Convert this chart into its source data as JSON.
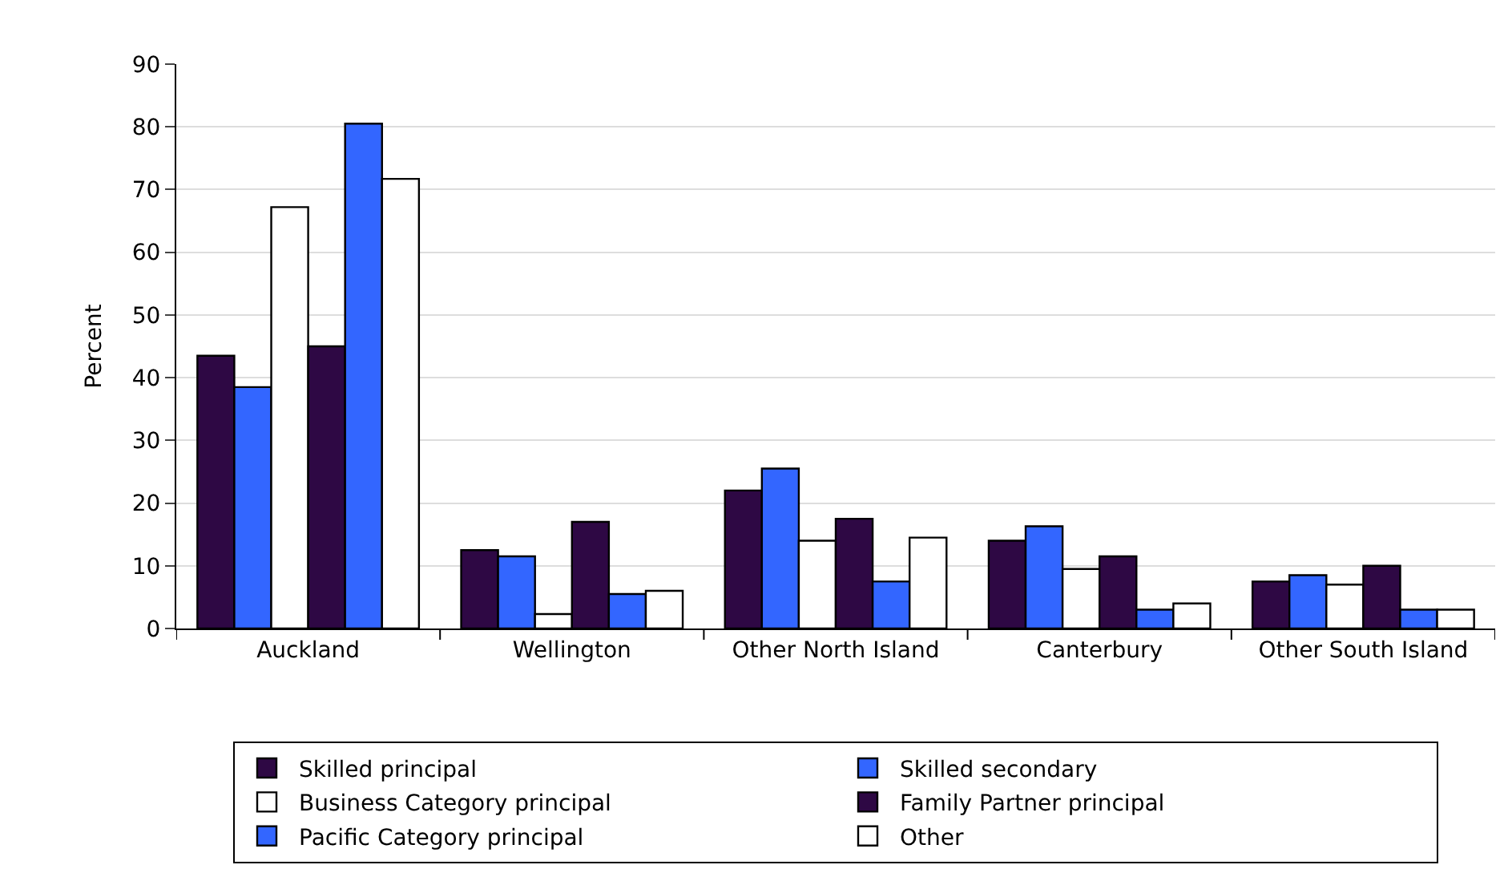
{
  "chart_data": {
    "type": "bar",
    "ylabel": "Percent",
    "categories": [
      "Auckland",
      "Wellington",
      "Other North Island",
      "Canterbury",
      "Other South Island"
    ],
    "series": [
      {
        "name": "Skilled principal",
        "color": "#2e0844",
        "values": [
          43.5,
          12.5,
          22,
          14,
          7.5
        ]
      },
      {
        "name": "Skilled secondary",
        "color": "#3366ff",
        "values": [
          38.5,
          11.5,
          25.5,
          16.3,
          8.5
        ]
      },
      {
        "name": "Business Category principal",
        "color": "#ffffff",
        "values": [
          67.2,
          2.3,
          14,
          9.5,
          7
        ]
      },
      {
        "name": "Family Partner principal",
        "color": "#2e0844",
        "values": [
          45,
          17,
          17.5,
          11.5,
          10
        ]
      },
      {
        "name": "Pacific Category principal",
        "color": "#3366ff",
        "values": [
          80.5,
          5.5,
          7.5,
          3,
          3
        ]
      },
      {
        "name": "Other",
        "color": "#ffffff",
        "values": [
          71.7,
          6,
          14.5,
          4,
          3
        ]
      }
    ],
    "ylim": [
      0,
      90
    ],
    "yticks": [
      0,
      10,
      20,
      30,
      40,
      50,
      60,
      70,
      80,
      90
    ],
    "grid": "y",
    "legend": "bottom"
  }
}
